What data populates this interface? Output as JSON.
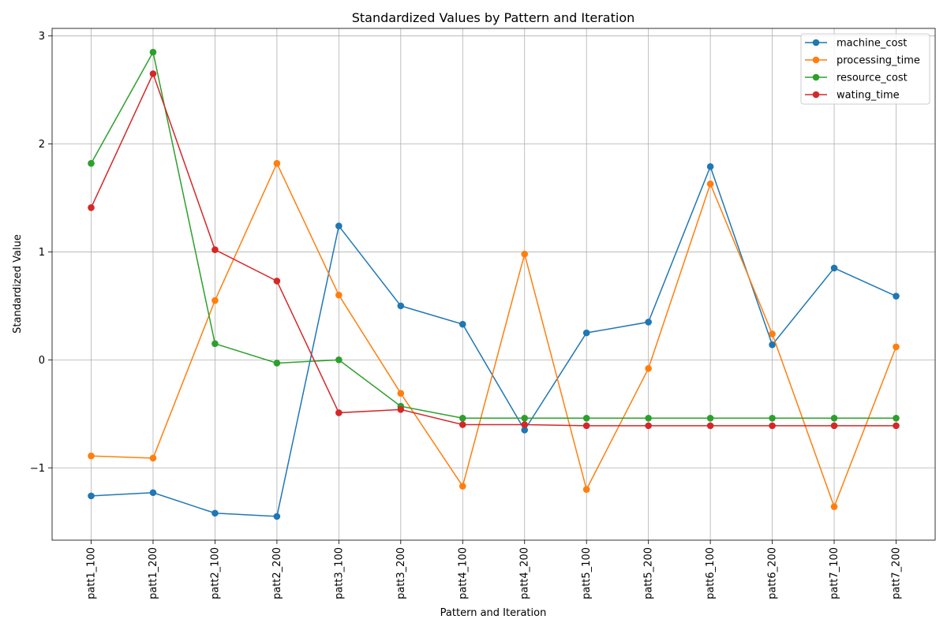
{
  "chart_data": {
    "type": "line",
    "title": "Standardized Values by Pattern and Iteration",
    "xlabel": "Pattern and Iteration",
    "ylabel": "Standardized Value",
    "categories": [
      "patt1_100",
      "patt1_200",
      "patt2_100",
      "patt2_200",
      "patt3_100",
      "patt3_200",
      "patt4_100",
      "patt4_200",
      "patt5_100",
      "patt5_200",
      "patt6_100",
      "patt6_200",
      "patt7_100",
      "patt7_200"
    ],
    "ylim": [
      -1.67,
      3.07
    ],
    "yticks": [
      -1,
      0,
      1,
      2,
      3
    ],
    "ytick_labels": [
      "−1",
      "0",
      "1",
      "2",
      "3"
    ],
    "grid": true,
    "legend_position": "top-right",
    "series": [
      {
        "name": "machine_cost",
        "color": "#1f77b4",
        "values": [
          -1.26,
          -1.23,
          -1.42,
          -1.45,
          1.24,
          0.5,
          0.33,
          -0.65,
          0.25,
          0.35,
          1.79,
          0.14,
          0.85,
          0.59
        ]
      },
      {
        "name": "processing_time",
        "color": "#ff7f0e",
        "values": [
          -0.89,
          -0.91,
          0.55,
          1.82,
          0.6,
          -0.31,
          -1.17,
          0.98,
          -1.2,
          -0.08,
          1.63,
          0.24,
          -1.36,
          0.12
        ]
      },
      {
        "name": "resource_cost",
        "color": "#2ca02c",
        "values": [
          1.82,
          2.85,
          0.15,
          -0.03,
          0.0,
          -0.43,
          -0.54,
          -0.54,
          -0.54,
          -0.54,
          -0.54,
          -0.54,
          -0.54,
          -0.54
        ]
      },
      {
        "name": "wating_time",
        "color": "#d62728",
        "values": [
          1.41,
          2.65,
          1.02,
          0.73,
          -0.49,
          -0.46,
          -0.6,
          -0.6,
          -0.61,
          -0.61,
          -0.61,
          -0.61,
          -0.61,
          -0.61
        ]
      }
    ]
  }
}
